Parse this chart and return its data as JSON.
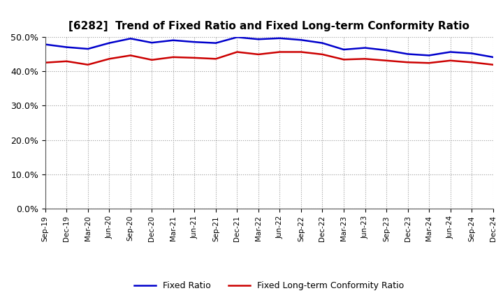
{
  "title": "[6282]  Trend of Fixed Ratio and Fixed Long-term Conformity Ratio",
  "x_labels": [
    "Sep-19",
    "Dec-19",
    "Mar-20",
    "Jun-20",
    "Sep-20",
    "Dec-20",
    "Mar-21",
    "Jun-21",
    "Sep-21",
    "Dec-21",
    "Mar-22",
    "Jun-22",
    "Sep-22",
    "Dec-22",
    "Mar-23",
    "Jun-23",
    "Sep-23",
    "Dec-23",
    "Mar-24",
    "Jun-24",
    "Sep-24",
    "Dec-24"
  ],
  "fixed_ratio": [
    47.8,
    47.0,
    46.5,
    48.2,
    49.5,
    48.3,
    49.0,
    48.5,
    48.2,
    49.9,
    49.3,
    49.6,
    49.1,
    48.2,
    46.3,
    46.8,
    46.1,
    45.0,
    44.6,
    45.6,
    45.2,
    44.1
  ],
  "fixed_lt_ratio": [
    42.5,
    42.9,
    41.9,
    43.6,
    44.6,
    43.3,
    44.1,
    43.9,
    43.6,
    45.6,
    44.9,
    45.6,
    45.6,
    44.9,
    43.4,
    43.6,
    43.1,
    42.6,
    42.4,
    43.1,
    42.6,
    41.9
  ],
  "fixed_ratio_color": "#0000CC",
  "fixed_lt_ratio_color": "#CC0000",
  "ylim": [
    0,
    50
  ],
  "yticks": [
    0,
    10,
    20,
    30,
    40,
    50
  ],
  "background_color": "#ffffff",
  "grid_color": "#999999"
}
